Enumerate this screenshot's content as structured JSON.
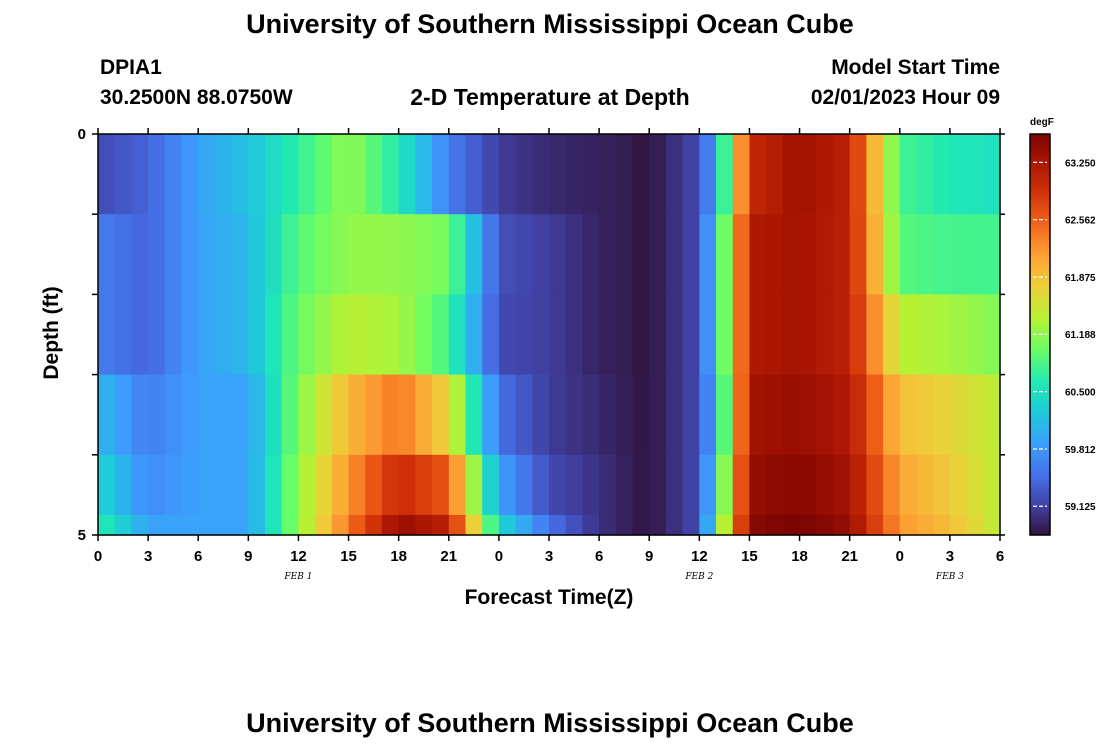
{
  "header": {
    "title": "University of Southern Mississippi Ocean Cube",
    "station": "DPIA1",
    "coords": "30.2500N  88.0750W",
    "subtitle": "2-D Temperature at Depth",
    "model_label": "Model Start Time",
    "model_time": "02/01/2023 Hour 09"
  },
  "footer": {
    "title": "University of Southern Mississippi Ocean Cube"
  },
  "chart_data": {
    "type": "heatmap",
    "title": "2-D Temperature at Depth",
    "xlabel": "Forecast Time(Z)",
    "ylabel": "Depth (ft)",
    "x_tick_labels": [
      "0",
      "3",
      "6",
      "9",
      "12",
      "15",
      "18",
      "21",
      "0",
      "3",
      "6",
      "9",
      "12",
      "15",
      "18",
      "21",
      "0",
      "3",
      "6"
    ],
    "date_labels": [
      "FEB 1",
      "FEB 2",
      "FEB 3"
    ],
    "y_tick_labels": [
      "0",
      "5"
    ],
    "ylim": [
      0,
      5
    ],
    "colorbar": {
      "unit": "degF",
      "range": [
        58.78,
        63.59
      ],
      "tick_labels": [
        "63.250",
        "62.562",
        "61.875",
        "61.188",
        "60.500",
        "59.812",
        "59.125"
      ]
    },
    "depth_levels": [
      "0-1",
      "1-2",
      "2-3",
      "3-4",
      "4-4.75",
      "4.75-5"
    ],
    "forecast_hours": [
      0,
      3,
      6,
      9,
      12,
      15,
      18,
      21,
      24,
      27,
      30,
      33,
      36,
      37,
      39,
      42,
      45,
      48,
      51,
      54
    ],
    "series": [
      {
        "depth": "0-1",
        "values": [
          59.2,
          59.4,
          59.9,
          60.2,
          60.7,
          61.2,
          60.6,
          59.6,
          59.1,
          58.95,
          58.9,
          58.8,
          59.2,
          60.0,
          63.0,
          63.35,
          63.1,
          60.8,
          60.6,
          60.5
        ]
      },
      {
        "depth": "1-2",
        "values": [
          59.6,
          59.4,
          59.9,
          60.1,
          60.9,
          61.2,
          61.2,
          61.05,
          59.25,
          59.1,
          58.9,
          58.8,
          59.2,
          60.3,
          63.2,
          63.3,
          63.1,
          60.9,
          60.8,
          60.8
        ]
      },
      {
        "depth": "2-3",
        "values": [
          59.6,
          59.4,
          59.9,
          60.1,
          61.0,
          61.4,
          61.3,
          60.8,
          59.2,
          59.1,
          58.9,
          58.8,
          59.2,
          60.3,
          63.2,
          63.3,
          63.1,
          61.4,
          61.3,
          61.1
        ]
      },
      {
        "depth": "3-4",
        "values": [
          60.1,
          59.6,
          59.9,
          59.9,
          61.1,
          61.95,
          62.4,
          61.7,
          59.5,
          59.1,
          58.95,
          58.8,
          59.2,
          60.1,
          63.3,
          63.4,
          63.2,
          61.9,
          61.7,
          61.4
        ]
      },
      {
        "depth": "4-4.75",
        "values": [
          60.4,
          59.7,
          59.9,
          59.9,
          61.2,
          62.2,
          63.0,
          62.6,
          59.9,
          59.2,
          59.0,
          58.8,
          59.2,
          60.4,
          63.4,
          63.5,
          63.3,
          62.1,
          61.8,
          61.4
        ]
      },
      {
        "depth": "4.75-5",
        "values": [
          60.7,
          59.9,
          59.9,
          59.9,
          61.2,
          62.4,
          63.4,
          63.1,
          60.4,
          59.5,
          59.0,
          58.8,
          59.2,
          60.7,
          63.5,
          63.6,
          63.4,
          62.2,
          61.9,
          61.4
        ]
      }
    ]
  }
}
